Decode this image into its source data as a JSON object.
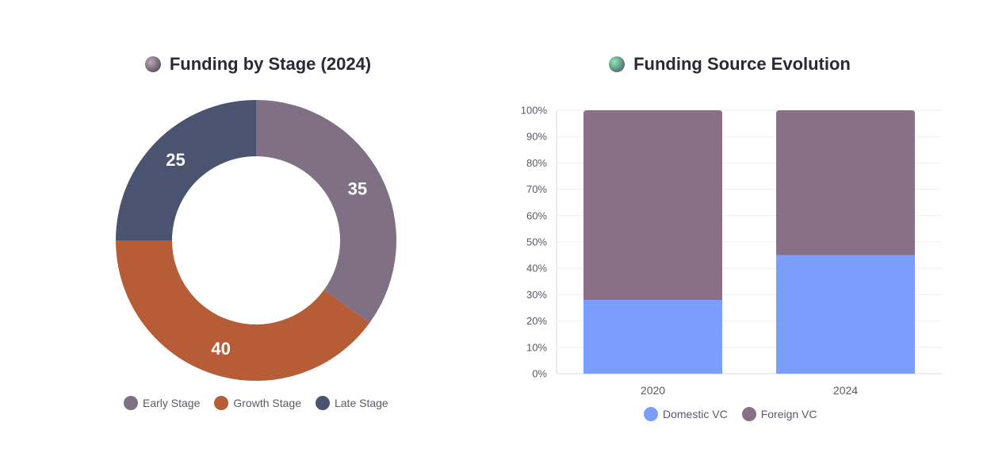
{
  "donut_chart": {
    "title": "Funding by Stage (2024)",
    "icon": "globe-icon",
    "legend": [
      "Early Stage",
      "Growth Stage",
      "Late Stage"
    ]
  },
  "bar_chart": {
    "title": "Funding Source Evolution",
    "icon": "globe-icon",
    "legend": [
      "Domestic VC",
      "Foreign VC"
    ],
    "y_ticks": [
      "0%",
      "10%",
      "20%",
      "30%",
      "40%",
      "50%",
      "60%",
      "70%",
      "80%",
      "90%",
      "100%"
    ]
  },
  "chart_data": [
    {
      "type": "pie",
      "title": "Funding by Stage (2024)",
      "donut": true,
      "categories": [
        "Early Stage",
        "Growth Stage",
        "Late Stage"
      ],
      "values": [
        35,
        40,
        25
      ],
      "colors": [
        "#7f7083",
        "#b65d37",
        "#4a5470"
      ],
      "legend": "bottom"
    },
    {
      "type": "bar",
      "stacked": true,
      "title": "Funding Source Evolution",
      "categories": [
        "2020",
        "2024"
      ],
      "series": [
        {
          "name": "Domestic VC",
          "values": [
            28,
            45
          ],
          "color": "#7b9dfc"
        },
        {
          "name": "Foreign VC",
          "values": [
            72,
            55
          ],
          "color": "#8a7087"
        }
      ],
      "ylim": [
        0,
        100
      ],
      "y_unit": "%",
      "grid": true,
      "legend": "bottom"
    }
  ]
}
